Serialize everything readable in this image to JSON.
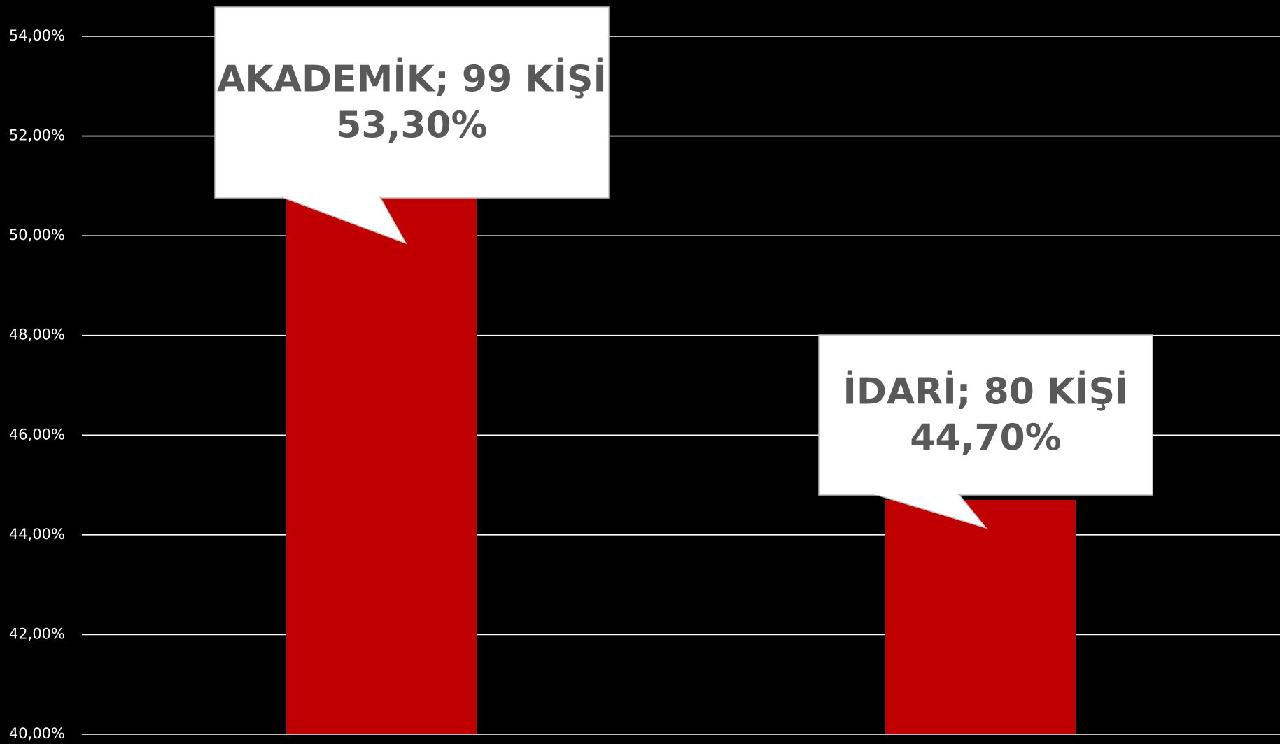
{
  "chart_data": {
    "type": "bar",
    "categories": [
      "AKADEMİK; 99 KİŞİ",
      "İDARİ; 80 KİŞİ"
    ],
    "values": [
      53.3,
      44.7
    ],
    "value_labels": [
      "53,30%",
      "44,70%"
    ],
    "color": "#c00000",
    "ylim": [
      40,
      54
    ],
    "yticks": [
      {
        "value": 40,
        "label": "40,00%"
      },
      {
        "value": 42,
        "label": "42,00%"
      },
      {
        "value": 44,
        "label": "44,00%"
      },
      {
        "value": 46,
        "label": "46,00%"
      },
      {
        "value": 48,
        "label": "48,00%"
      },
      {
        "value": 50,
        "label": "50,00%"
      },
      {
        "value": 52,
        "label": "52,00%"
      },
      {
        "value": 54,
        "label": "54,00%"
      }
    ],
    "grid": true
  }
}
